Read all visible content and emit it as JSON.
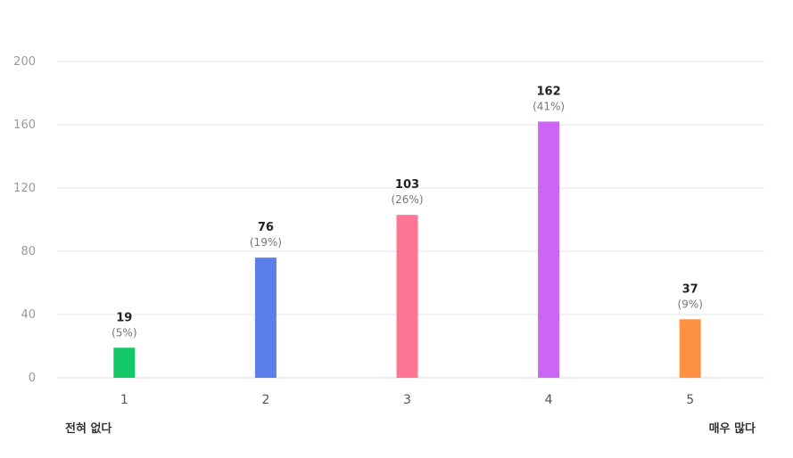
{
  "chart_data": {
    "type": "bar",
    "categories": [
      "1",
      "2",
      "3",
      "4",
      "5"
    ],
    "values": [
      19,
      76,
      103,
      162,
      37
    ],
    "percent_labels": [
      "(5%)",
      "(19%)",
      "(26%)",
      "(41%)",
      "(9%)"
    ],
    "colors": [
      "#12c866",
      "#5b7fe9",
      "#ff7695",
      "#cc66f5",
      "#ff9142"
    ],
    "ylim": [
      0,
      200
    ],
    "yticks": [
      0,
      40,
      80,
      120,
      160,
      200
    ],
    "grid": true,
    "title": "",
    "xlabel": "",
    "ylabel": ""
  },
  "scale_labels": {
    "low": "전혀 없다",
    "high": "매우 많다"
  }
}
